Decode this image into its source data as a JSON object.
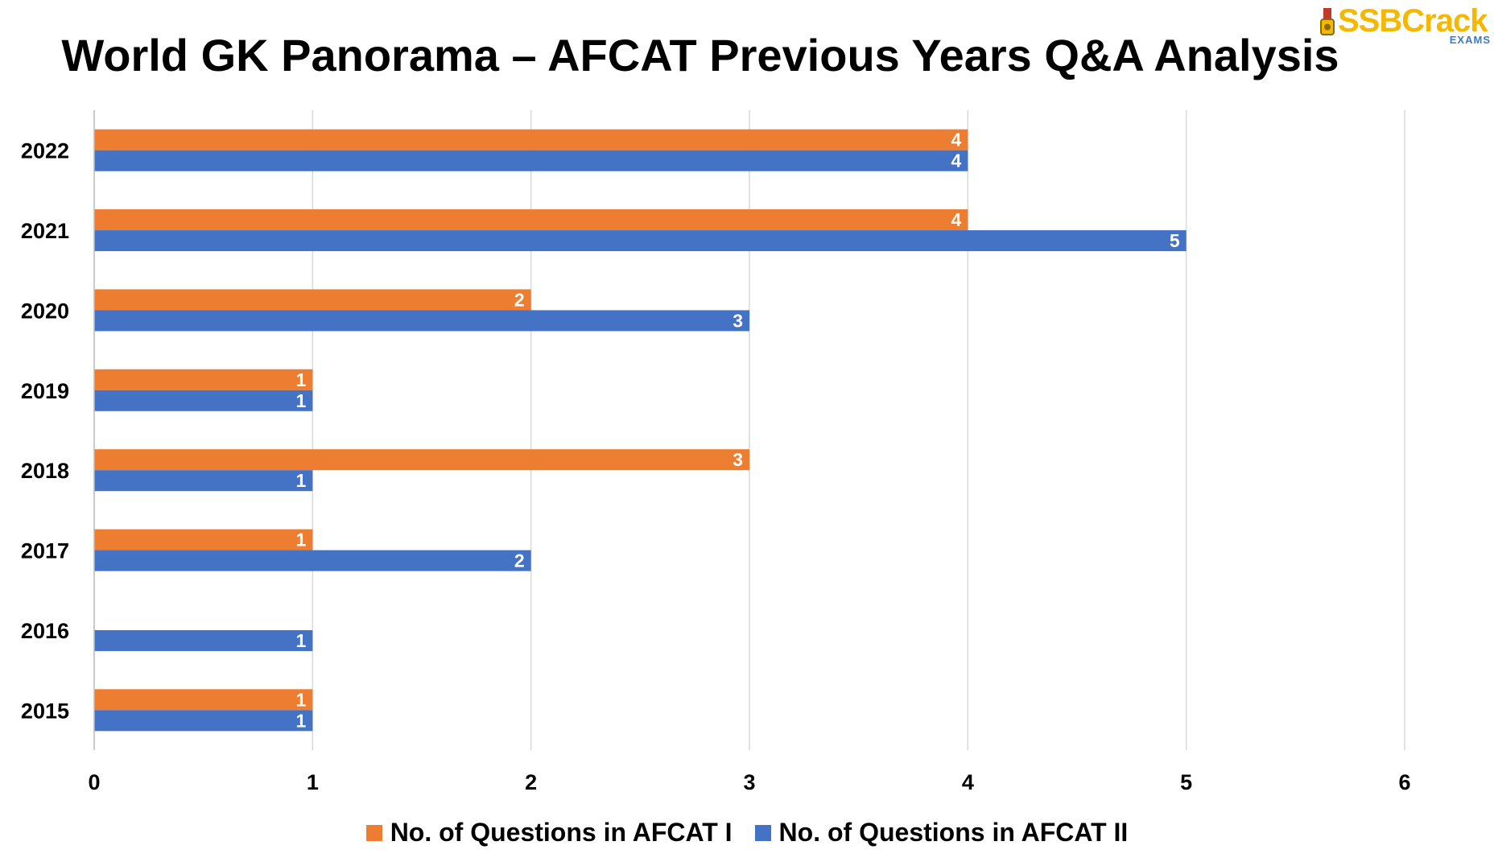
{
  "chart_data": {
    "type": "bar",
    "orientation": "horizontal",
    "title": "World GK Panorama – AFCAT Previous Years Q&A Analysis",
    "categories": [
      "2022",
      "2021",
      "2020",
      "2019",
      "2018",
      "2017",
      "2016",
      "2015"
    ],
    "series": [
      {
        "name": "No. of Questions in AFCAT I",
        "color": "#ed7d31",
        "values": [
          4,
          4,
          2,
          1,
          3,
          1,
          0,
          1
        ]
      },
      {
        "name": "No. of Questions in AFCAT II",
        "color": "#4472c4",
        "values": [
          4,
          5,
          3,
          1,
          1,
          2,
          1,
          1
        ]
      }
    ],
    "xlim": [
      0,
      6
    ],
    "xticks": [
      "0",
      "1",
      "2",
      "3",
      "4",
      "5",
      "6"
    ],
    "grid": "vertical",
    "legend": "bottom",
    "data_labels": true
  },
  "logo": {
    "text": "SSBCrack",
    "subtext": "EXAMS"
  }
}
